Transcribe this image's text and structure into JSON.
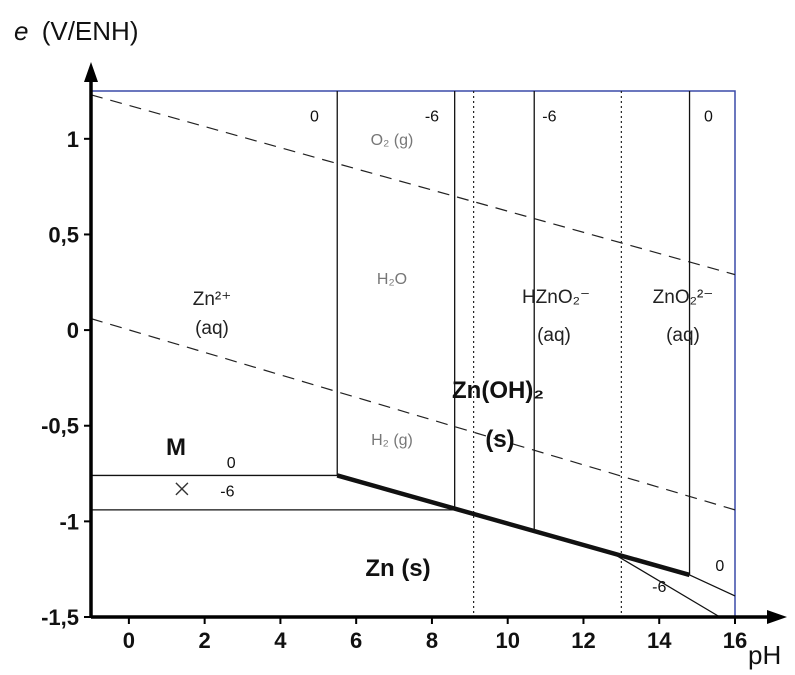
{
  "chart_data": {
    "type": "line",
    "ylabel_italic": "e",
    "ylabel_rest": "(V/ENH)",
    "xlabel": "pH",
    "xlim": [
      -1,
      16
    ],
    "ylim": [
      -1.5,
      1.25
    ],
    "x_ticks": [
      {
        "v": 0,
        "label": "0"
      },
      {
        "v": 2,
        "label": "2"
      },
      {
        "v": 4,
        "label": "4"
      },
      {
        "v": 6,
        "label": "6"
      },
      {
        "v": 8,
        "label": "8"
      },
      {
        "v": 10,
        "label": "10"
      },
      {
        "v": 12,
        "label": "12"
      },
      {
        "v": 14,
        "label": "14"
      },
      {
        "v": 16,
        "label": "16"
      }
    ],
    "y_ticks": [
      {
        "v": 1,
        "label": "1"
      },
      {
        "v": 0.5,
        "label": "0,5"
      },
      {
        "v": 0,
        "label": "0"
      },
      {
        "v": -0.5,
        "label": "-0,5"
      },
      {
        "v": -1,
        "label": "-1"
      },
      {
        "v": -1.5,
        "label": "-1,5"
      }
    ],
    "water_lines": [
      {
        "name": "O2/H2O",
        "points": [
          [
            -1,
            1.23
          ],
          [
            16,
            0.29
          ]
        ]
      },
      {
        "name": "H2O/H2",
        "points": [
          [
            -1,
            0.06
          ],
          [
            16,
            -0.94
          ]
        ]
      }
    ],
    "boundaries": [
      {
        "points": [
          [
            -1,
            -0.76
          ],
          [
            5.5,
            -0.76
          ]
        ],
        "weight": "thin"
      },
      {
        "points": [
          [
            -1,
            -0.94
          ],
          [
            8.6,
            -0.94
          ]
        ],
        "weight": "thin"
      },
      {
        "points": [
          [
            5.5,
            -0.76
          ],
          [
            14.8,
            -1.28
          ]
        ],
        "weight": "bold"
      },
      {
        "points": [
          [
            5.5,
            -0.76
          ],
          [
            5.5,
            1.25
          ]
        ],
        "weight": "thin"
      },
      {
        "points": [
          [
            8.6,
            -0.93
          ],
          [
            8.6,
            1.25
          ]
        ],
        "weight": "thin"
      },
      {
        "points": [
          [
            10.7,
            -1.04
          ],
          [
            10.7,
            1.25
          ]
        ],
        "weight": "thin"
      },
      {
        "points": [
          [
            14.8,
            -1.28
          ],
          [
            14.8,
            1.25
          ]
        ],
        "weight": "thin"
      },
      {
        "points": [
          [
            14.8,
            -1.28
          ],
          [
            16,
            -1.39
          ]
        ],
        "weight": "thin"
      },
      {
        "points": [
          [
            12.8,
            -1.17
          ],
          [
            15.6,
            -1.5
          ]
        ],
        "weight": "thin"
      }
    ],
    "dotted_verticals": [
      9.1,
      13.0
    ],
    "frame_right": 16,
    "frame_top": 1.25,
    "concentration_labels": [
      {
        "text": "0",
        "x": 4.9,
        "y": 1.09
      },
      {
        "text": "-6",
        "x": 8.0,
        "y": 1.09
      },
      {
        "text": "-6",
        "x": 11.1,
        "y": 1.09
      },
      {
        "text": "0",
        "x": 15.3,
        "y": 1.09
      },
      {
        "text": "0",
        "x": 2.7,
        "y": -0.72
      },
      {
        "text": "-6",
        "x": 2.6,
        "y": -0.87
      },
      {
        "text": "0",
        "x": 15.6,
        "y": -1.26
      },
      {
        "text": "-6",
        "x": 14.0,
        "y": -1.37
      }
    ],
    "species": {
      "zn2_line1": "Zn²⁺",
      "zn2_line2": "(aq)",
      "o2": "O₂ (g)",
      "h2o": "H₂O",
      "h2": "H₂ (g)",
      "hzno2_line1": "HZnO₂⁻",
      "hzno2_line2": "(aq)",
      "zno2_line1": "ZnO₂²⁻",
      "zno2_line2": "(aq)",
      "znoh2_line1": "Zn(OH)₂",
      "znoh2_line2": "(s)",
      "zns": "Zn (s)",
      "point_label": "M"
    },
    "point_M": {
      "x": 1.4,
      "y": -0.83
    },
    "colors": {
      "frame": "#3a4aa8",
      "axis": "#000000",
      "line": "#111111"
    }
  }
}
